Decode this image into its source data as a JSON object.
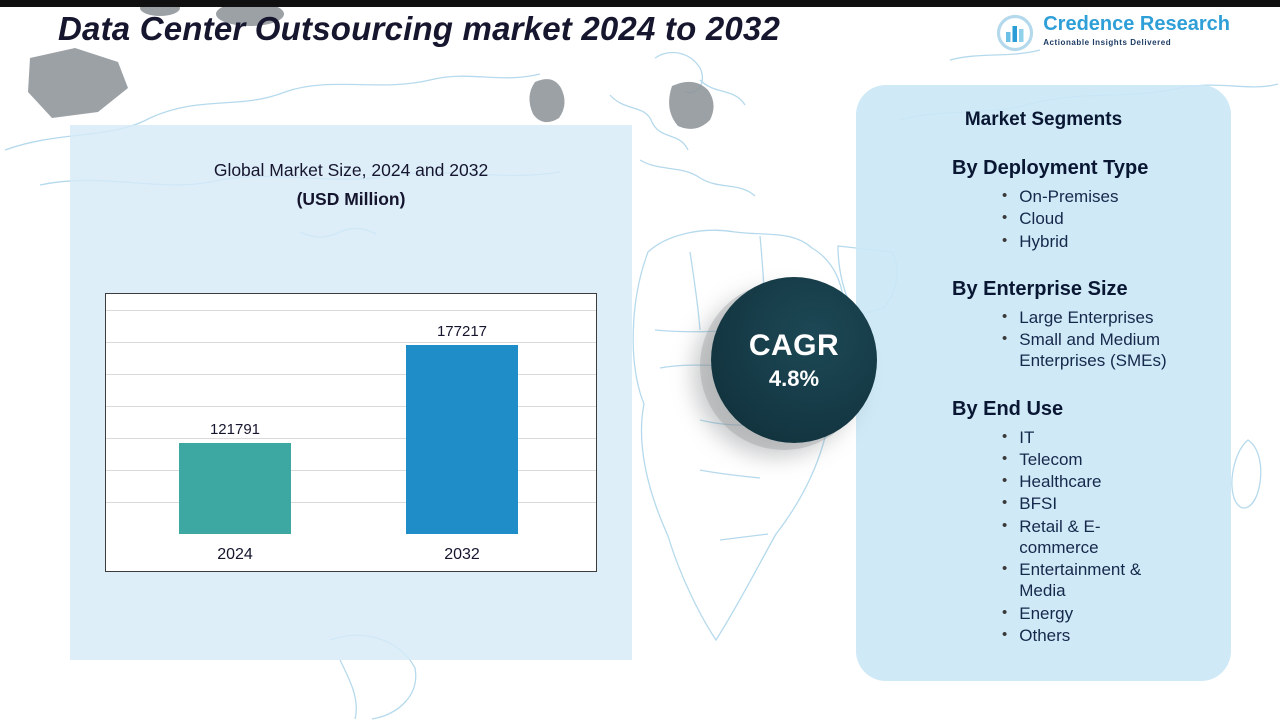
{
  "header": {
    "title": "Data Center Outsourcing market 2024 to 2032",
    "logo": {
      "name": "Credence Research",
      "tagline": "Actionable Insights Delivered"
    }
  },
  "chart_data": {
    "type": "bar",
    "title": "Global Market Size, 2024 and 2032",
    "subtitle": "(USD Million)",
    "categories": [
      "2024",
      "2032"
    ],
    "values": [
      121791,
      177217
    ],
    "ylim": [
      70000,
      190000
    ],
    "grid": true,
    "legend": "none",
    "bar_colors": [
      "#3da8a2",
      "#1f8ec8"
    ]
  },
  "cagr": {
    "label": "CAGR",
    "value": "4.8%"
  },
  "segments": {
    "title": "Market Segments",
    "bullet": "•",
    "groups": [
      {
        "heading": "By Deployment Type",
        "items": [
          "On-Premises",
          "Cloud",
          "Hybrid"
        ]
      },
      {
        "heading": "By Enterprise Size",
        "items": [
          "Large Enterprises",
          "Small and Medium Enterprises (SMEs)"
        ]
      },
      {
        "heading": "By End Use",
        "items": [
          "IT",
          "Telecom",
          "Healthcare",
          "BFSI",
          "Retail & E-commerce",
          "Entertainment & Media",
          "Energy",
          "Others"
        ]
      }
    ]
  },
  "colors": {
    "accent_teal": "#3da8a2",
    "accent_blue": "#1f8ec8",
    "cagr_circle": "#143642",
    "panel_blue": "#d3e9f7",
    "brand_blue": "#2f9fd8",
    "brand_navy": "#1d3b63"
  }
}
